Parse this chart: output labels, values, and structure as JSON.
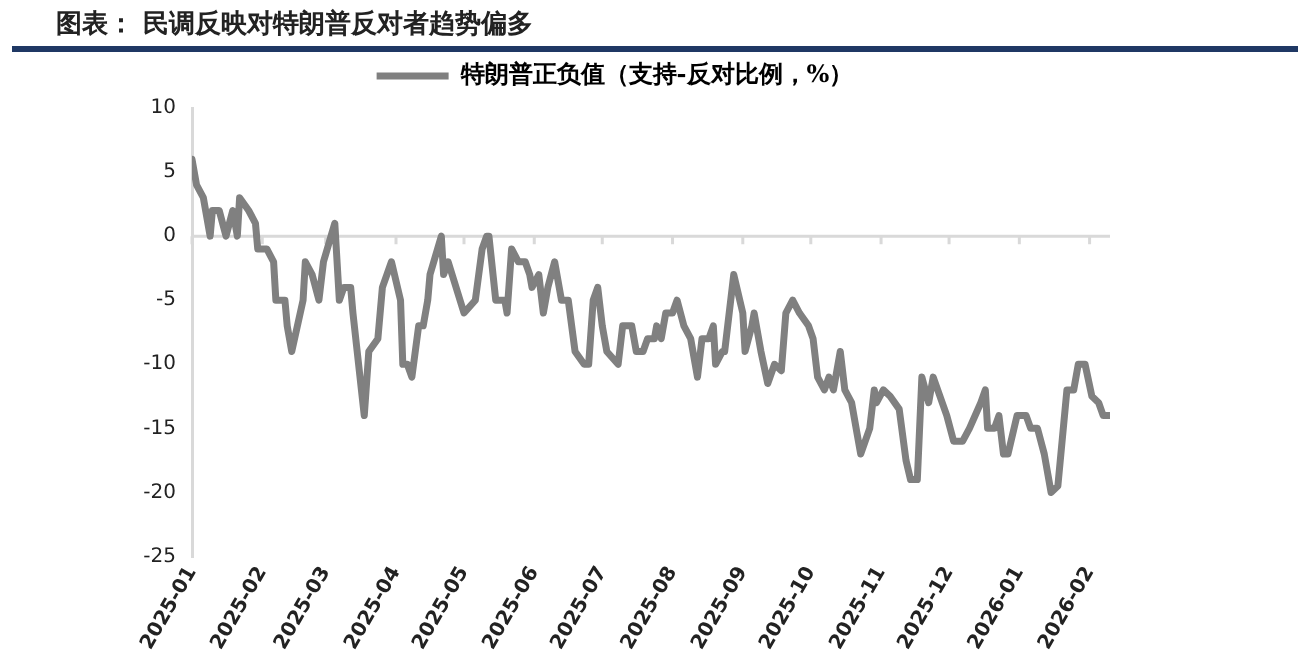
{
  "chart_data": {
    "type": "line",
    "title": "图表： 民调反映对特朗普反对者趋势偏多",
    "x": [
      "2025-01-01",
      "2025-01-03",
      "2025-01-06",
      "2025-01-09",
      "2025-01-10",
      "2025-01-13",
      "2025-01-16",
      "2025-01-19",
      "2025-01-21",
      "2025-01-22",
      "2025-01-26",
      "2025-01-29",
      "2025-01-30",
      "2025-02-03",
      "2025-02-06",
      "2025-02-07",
      "2025-02-11",
      "2025-02-12",
      "2025-02-14",
      "2025-02-19",
      "2025-02-20",
      "2025-02-23",
      "2025-02-26",
      "2025-02-28",
      "2025-03-05",
      "2025-03-07",
      "2025-03-09",
      "2025-03-12",
      "2025-03-13",
      "2025-03-18",
      "2025-03-20",
      "2025-03-24",
      "2025-03-26",
      "2025-03-30",
      "2025-04-03",
      "2025-04-04",
      "2025-04-06",
      "2025-04-08",
      "2025-04-11",
      "2025-04-13",
      "2025-04-15",
      "2025-04-16",
      "2025-04-21",
      "2025-04-22",
      "2025-04-24",
      "2025-05-01",
      "2025-05-06",
      "2025-05-09",
      "2025-05-11",
      "2025-05-12",
      "2025-05-15",
      "2025-05-19",
      "2025-05-20",
      "2025-05-22",
      "2025-05-25",
      "2025-05-28",
      "2025-05-30",
      "2025-05-31",
      "2025-06-03",
      "2025-06-05",
      "2025-06-07",
      "2025-06-10",
      "2025-06-13",
      "2025-06-16",
      "2025-06-19",
      "2025-06-23",
      "2025-06-25",
      "2025-06-27",
      "2025-06-29",
      "2025-07-01",
      "2025-07-03",
      "2025-07-08",
      "2025-07-10",
      "2025-07-14",
      "2025-07-16",
      "2025-07-19",
      "2025-07-21",
      "2025-07-24",
      "2025-07-25",
      "2025-07-27",
      "2025-07-29",
      "2025-08-01",
      "2025-08-03",
      "2025-08-06",
      "2025-08-09",
      "2025-08-12",
      "2025-08-14",
      "2025-08-17",
      "2025-08-19",
      "2025-08-20",
      "2025-08-23",
      "2025-08-24",
      "2025-08-26",
      "2025-08-28",
      "2025-09-01",
      "2025-09-02",
      "2025-09-05",
      "2025-09-06",
      "2025-09-09",
      "2025-09-12",
      "2025-09-15",
      "2025-09-18",
      "2025-09-20",
      "2025-09-23",
      "2025-09-26",
      "2025-09-30",
      "2025-10-02",
      "2025-10-04",
      "2025-10-07",
      "2025-10-09",
      "2025-10-11",
      "2025-10-14",
      "2025-10-16",
      "2025-10-19",
      "2025-10-21",
      "2025-10-23",
      "2025-10-27",
      "2025-10-29",
      "2025-10-30",
      "2025-11-02",
      "2025-11-05",
      "2025-11-09",
      "2025-11-12",
      "2025-11-14",
      "2025-11-17",
      "2025-11-19",
      "2025-11-22",
      "2025-11-24",
      "2025-11-27",
      "2025-11-30",
      "2025-12-03",
      "2025-12-07",
      "2025-12-10",
      "2025-12-15",
      "2025-12-17",
      "2025-12-18",
      "2025-12-21",
      "2025-12-23",
      "2025-12-25",
      "2025-12-27",
      "2025-12-31",
      "2026-01-04",
      "2026-01-06",
      "2026-01-09",
      "2026-01-12",
      "2026-01-15",
      "2026-01-18",
      "2026-01-22",
      "2026-01-25",
      "2026-01-27",
      "2026-01-30",
      "2026-02-02",
      "2026-02-05",
      "2026-02-07",
      "2026-02-10"
    ],
    "series": [
      {
        "name": "特朗普正负值（支持-反对比例，%）",
        "color": "#808080",
        "values": [
          6,
          4,
          3,
          0,
          2,
          2,
          0,
          2,
          0,
          3,
          2,
          1,
          -1,
          -1,
          -2,
          -5,
          -5,
          -7,
          -9,
          -5,
          -2,
          -3,
          -5,
          -2,
          1,
          -5,
          -4,
          -4,
          -6,
          -14,
          -9,
          -8,
          -4,
          -2,
          -5,
          -10,
          -10,
          -11,
          -7,
          -7,
          -5,
          -3,
          0,
          -3,
          -2,
          -6,
          -5,
          -1,
          0,
          0,
          -5,
          -5,
          -6,
          -1,
          -2,
          -2,
          -3,
          -4,
          -3,
          -6,
          -4,
          -2,
          -5,
          -5,
          -9,
          -10,
          -10,
          -5,
          -4,
          -7,
          -9,
          -10,
          -7,
          -7,
          -9,
          -9,
          -8,
          -8,
          -7,
          -8,
          -6,
          -6,
          -5,
          -7,
          -8,
          -11,
          -8,
          -8,
          -7,
          -10,
          -9,
          -9,
          -6,
          -3,
          -6,
          -9,
          -7,
          -6,
          -9,
          -11.5,
          -10,
          -10.5,
          -6,
          -5,
          -6,
          -7,
          -8,
          -11,
          -12,
          -11,
          -12,
          -9,
          -12,
          -13,
          -15,
          -17,
          -15,
          -12,
          -13,
          -12,
          -12.5,
          -13.5,
          -17.5,
          -19,
          -19,
          -11,
          -13,
          -11,
          -12.5,
          -14,
          -16,
          -16,
          -15,
          -13,
          -12,
          -15,
          -15,
          -14,
          -17,
          -17,
          -14,
          -14,
          -15,
          -15,
          -17,
          -20,
          -19.5,
          -12,
          -12,
          -10,
          -10,
          -12.5,
          -13,
          -14,
          -14
        ]
      }
    ],
    "xlim": [
      "2025-01-01",
      "2026-02-10"
    ],
    "xticks": [
      {
        "value": "2025-01-01",
        "label": "2025-01"
      },
      {
        "value": "2025-02-01",
        "label": "2025-02"
      },
      {
        "value": "2025-03-01",
        "label": "2025-03"
      },
      {
        "value": "2025-04-01",
        "label": "2025-04"
      },
      {
        "value": "2025-05-01",
        "label": "2025-05"
      },
      {
        "value": "2025-06-01",
        "label": "2025-06"
      },
      {
        "value": "2025-07-01",
        "label": "2025-07"
      },
      {
        "value": "2025-08-01",
        "label": "2025-08"
      },
      {
        "value": "2025-09-01",
        "label": "2025-09"
      },
      {
        "value": "2025-10-01",
        "label": "2025-10"
      },
      {
        "value": "2025-11-01",
        "label": "2025-11"
      },
      {
        "value": "2025-12-01",
        "label": "2025-12"
      },
      {
        "value": "2026-01-01",
        "label": "2026-01"
      },
      {
        "value": "2026-02-01",
        "label": "2026-02"
      }
    ],
    "ylim": [
      -25,
      10
    ],
    "yticks": [
      -25,
      -20,
      -15,
      -10,
      -5,
      0,
      5,
      10
    ],
    "ref_lines": [
      {
        "axis": "y",
        "value": 0,
        "color": "#d9d9d9"
      }
    ],
    "legend": "top",
    "marker": "none",
    "line_style": "solid",
    "grid": false
  }
}
